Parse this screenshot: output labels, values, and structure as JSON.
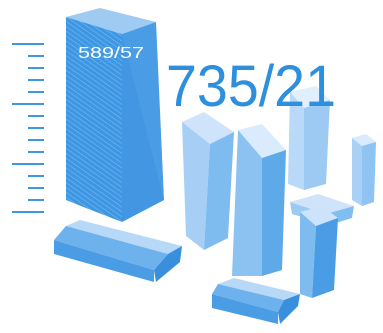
{
  "figure": {
    "big_label": "735/21",
    "small_label": "589/57"
  },
  "colors": {
    "light": "#d6e9fb",
    "mid": "#9bc7f2",
    "deep": "#5aa6e8",
    "accent": "#2e8fdd",
    "text": "#2e8fdd",
    "small_text": "#ffffff"
  }
}
